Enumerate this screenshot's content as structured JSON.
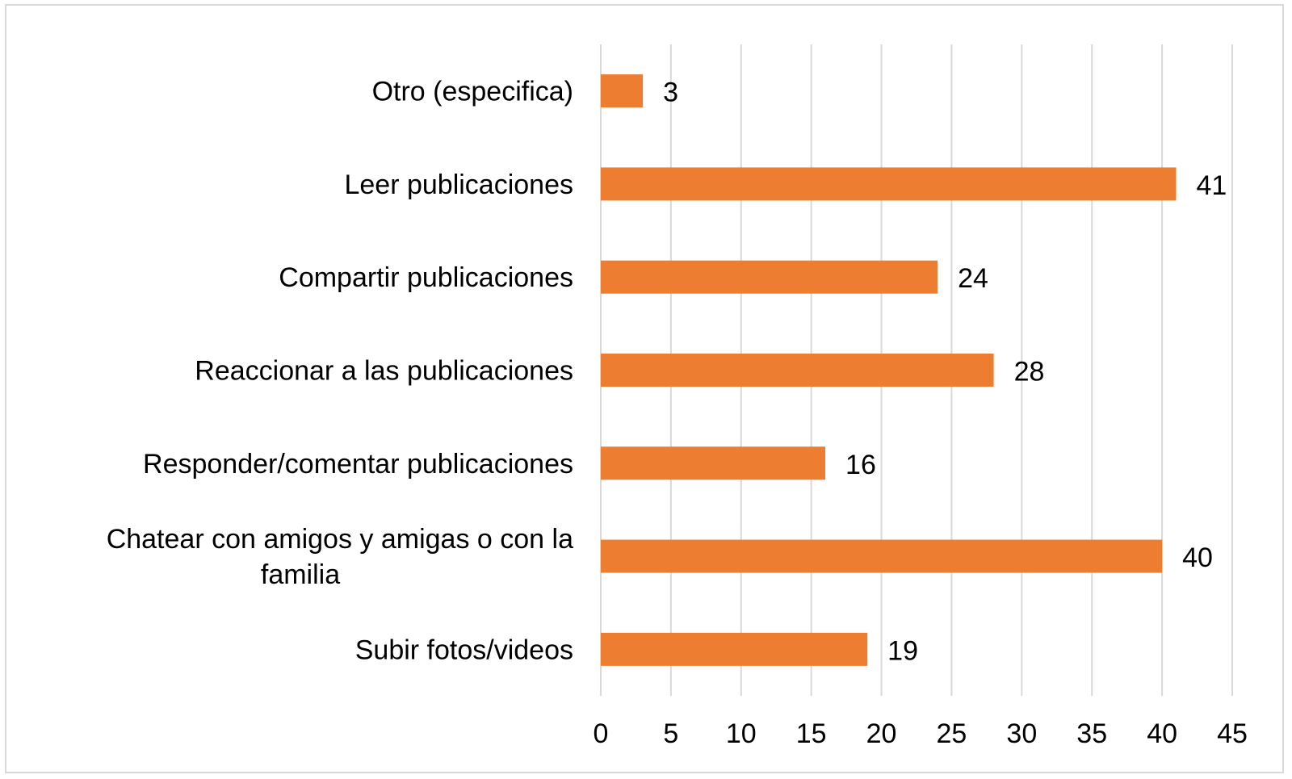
{
  "chart_data": {
    "type": "bar",
    "orientation": "horizontal",
    "title": "",
    "xlabel": "",
    "ylabel": "",
    "categories": [
      [
        "Otro (especifica)"
      ],
      [
        "Leer publicaciones"
      ],
      [
        "Compartir publicaciones"
      ],
      [
        "Reaccionar a las publicaciones"
      ],
      [
        "Responder/comentar publicaciones"
      ],
      [
        "Chatear con amigos y amigas o con la",
        "familia"
      ],
      [
        "Subir fotos/videos"
      ]
    ],
    "values": [
      3,
      41,
      24,
      28,
      16,
      40,
      19
    ],
    "data_labels": [
      "3",
      "41",
      "24",
      "28",
      "16",
      "40",
      "19"
    ],
    "xlim": [
      0,
      45
    ],
    "xticks": [
      0,
      5,
      10,
      15,
      20,
      25,
      30,
      35,
      40,
      45
    ],
    "xtick_labels": [
      "0",
      "5",
      "10",
      "15",
      "20",
      "25",
      "30",
      "35",
      "40",
      "45"
    ],
    "grid": "vertical",
    "legend": "none",
    "bar_color": "#ed7d31",
    "grid_color": "#d9d9d9"
  }
}
